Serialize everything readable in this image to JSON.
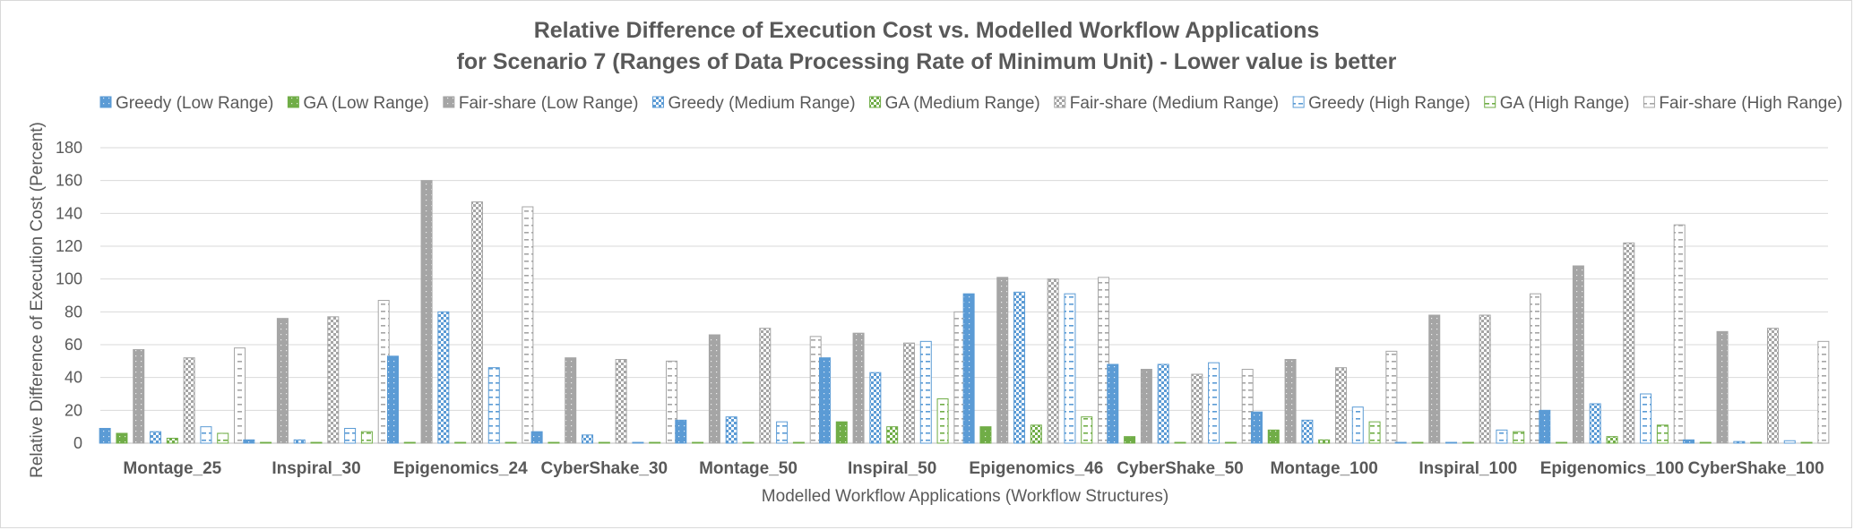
{
  "chart_data": {
    "type": "bar",
    "title": "Relative Difference of Execution Cost vs. Modelled Workflow Applications",
    "subtitle": "for Scenario 7 (Ranges of Data Processing Rate of Minimum Unit) - Lower value is better",
    "xlabel": "Modelled Workflow Applications (Workflow Structures)",
    "ylabel": "Relative Difference of Execution Cost (Percent)",
    "ylim": [
      0,
      180
    ],
    "yticks": [
      0,
      20,
      40,
      60,
      80,
      100,
      120,
      140,
      160,
      180
    ],
    "grid": true,
    "legend_position": "top",
    "categories": [
      "Montage_25",
      "Inspiral_30",
      "Epigenomics_24",
      "CyberShake_30",
      "Montage_50",
      "Inspiral_50",
      "Epigenomics_46",
      "CyberShake_50",
      "Montage_100",
      "Inspiral_100",
      "Epigenomics_100",
      "CyberShake_100"
    ],
    "series": [
      {
        "name": "Greedy (Low Range)",
        "color": "#5b9bd5",
        "pattern": "dots-solid",
        "values": [
          9,
          2,
          53,
          7,
          14,
          52,
          91,
          48,
          19,
          0.5,
          20,
          2
        ]
      },
      {
        "name": "GA (Low Range)",
        "color": "#70ad47",
        "pattern": "dots-solid",
        "values": [
          6,
          0.5,
          0.5,
          0.5,
          0.5,
          13,
          10,
          4,
          8,
          0.5,
          0.5,
          0.5
        ]
      },
      {
        "name": "Fair-share (Low Range)",
        "color": "#a5a5a5",
        "pattern": "dots-solid",
        "values": [
          57,
          76,
          160,
          52,
          66,
          67,
          101,
          45,
          51,
          78,
          108,
          68
        ]
      },
      {
        "name": "Greedy (Medium Range)",
        "color": "#5b9bd5",
        "pattern": "checker",
        "values": [
          7,
          2,
          80,
          5,
          16,
          43,
          92,
          48,
          14,
          0.5,
          24,
          1
        ]
      },
      {
        "name": "GA (Medium Range)",
        "color": "#70ad47",
        "pattern": "checker",
        "values": [
          3,
          0.5,
          0.5,
          0.5,
          0.5,
          10,
          11,
          0.5,
          2,
          0.5,
          4,
          0.5
        ]
      },
      {
        "name": "Fair-share (Medium Range)",
        "color": "#a5a5a5",
        "pattern": "checker",
        "values": [
          52,
          77,
          147,
          51,
          70,
          61,
          100,
          42,
          46,
          78,
          122,
          70
        ]
      },
      {
        "name": "Greedy (High Range)",
        "color": "#5b9bd5",
        "pattern": "dash",
        "values": [
          10,
          9,
          46,
          0.5,
          13,
          62,
          91,
          49,
          22,
          8,
          30,
          1.5
        ]
      },
      {
        "name": "GA (High Range)",
        "color": "#70ad47",
        "pattern": "dash",
        "values": [
          6,
          7,
          0.5,
          0.5,
          0.5,
          27,
          16,
          0.5,
          13,
          7,
          11,
          0.5
        ]
      },
      {
        "name": "Fair-share (High Range)",
        "color": "#a5a5a5",
        "pattern": "dash",
        "values": [
          58,
          87,
          144,
          50,
          65,
          80,
          101,
          45,
          56,
          91,
          133,
          62
        ]
      }
    ]
  }
}
